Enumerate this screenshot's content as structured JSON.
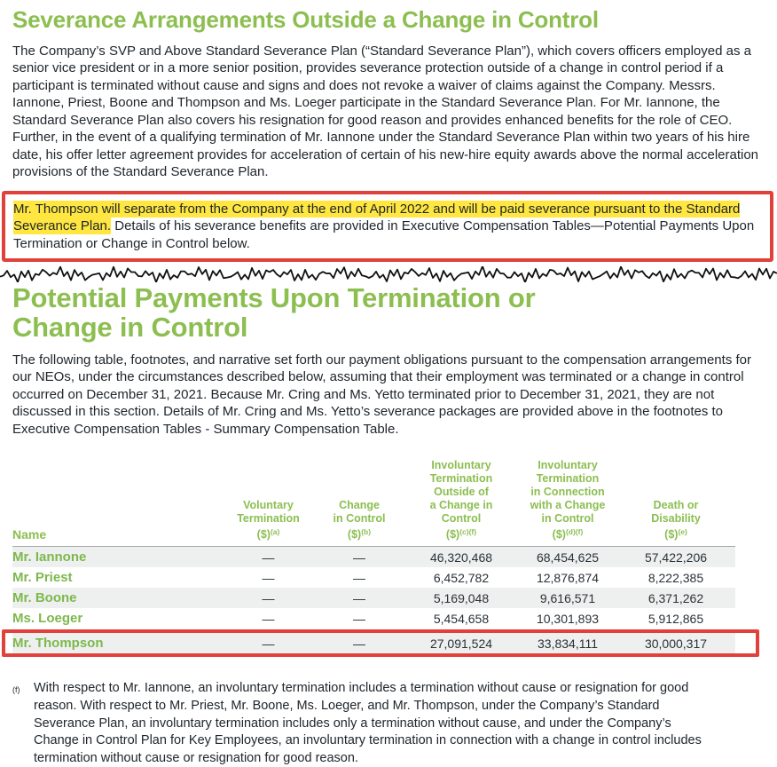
{
  "colors": {
    "accent_green": "#8cbe50",
    "name_green": "#7db84d",
    "highlight_yellow": "#ffe640",
    "annotation_red": "#e2403b",
    "row_shade": "#eef0ef"
  },
  "section1": {
    "title": "Severance Arrangements Outside a Change in Control",
    "body": "The Company’s SVP and Above Standard Severance Plan (“Standard Severance Plan”), which covers officers employed as a senior vice president or in a more senior position, provides severance protection outside of a change in control period if a participant is terminated without cause and signs and does not revoke a waiver of claims against the Company. Messrs. Iannone, Priest, Boone and Thompson and Ms. Loeger participate in the Standard Severance Plan. For Mr. Iannone, the Standard Severance Plan also covers his resignation for good reason and provides enhanced benefits for the role of CEO. Further, in the event of a qualifying termination of Mr. Iannone under the Standard Severance Plan within two years of his hire date, his offer letter agreement provides for acceleration of certain of his new-hire equity awards above the normal acceleration provisions of the Standard Severance Plan."
  },
  "callout": {
    "highlighted": "Mr. Thompson will separate from the Company at the end of April 2022 and will be paid severance pursuant to the Standard Severance Plan.",
    "rest": " Details of his severance benefits are provided in Executive Compensation Tables—Potential Payments Upon Termination or Change in Control below."
  },
  "section2": {
    "title": "Potential Payments Upon Termination or Change in Control",
    "body": "The following table, footnotes, and narrative set forth our payment obligations pursuant to the compensation arrangements for our NEOs, under the circumstances described below, assuming that their employment was terminated or a change in control occurred on December 31, 2021. Because Mr. Cring and Ms. Yetto terminated prior to December 31, 2021, they are not discussed in this section. Details of Mr. Cring and Ms. Yetto’s severance packages are provided above in the footnotes to Executive Compensation Tables  - Summary Compensation Table."
  },
  "table": {
    "headers": {
      "name": "Name",
      "col1": {
        "lines": "Voluntary\nTermination",
        "dollar": "($)",
        "sup": "(a)"
      },
      "col2": {
        "lines": "Change\nin Control",
        "dollar": "($)",
        "sup": "(b)"
      },
      "col3": {
        "lines": "Involuntary\nTermination\nOutside of\na Change in\nControl",
        "dollar": "($)",
        "sup": "(c)(f)"
      },
      "col4": {
        "lines": "Involuntary\nTermination\nin Connection\nwith a Change\nin Control",
        "dollar": "($)",
        "sup": "(d)(f)"
      },
      "col5": {
        "lines": "Death or\nDisability",
        "dollar": "($)",
        "sup": "(e)"
      }
    },
    "rows": [
      {
        "name": "Mr. Iannone",
        "v1": "—",
        "v2": "—",
        "v3": "46,320,468",
        "v4": "68,454,625",
        "v5": "57,422,206"
      },
      {
        "name": "Mr. Priest",
        "v1": "—",
        "v2": "—",
        "v3": "6,452,782",
        "v4": "12,876,874",
        "v5": "8,222,385"
      },
      {
        "name": "Mr. Boone",
        "v1": "—",
        "v2": "—",
        "v3": "5,169,048",
        "v4": "9,616,571",
        "v5": "6,371,262"
      },
      {
        "name": "Ms. Loeger",
        "v1": "—",
        "v2": "—",
        "v3": "5,454,658",
        "v4": "10,301,893",
        "v5": "5,912,865"
      },
      {
        "name": "Mr. Thompson",
        "v1": "—",
        "v2": "—",
        "v3": "27,091,524",
        "v4": "33,834,111",
        "v5": "30,000,317"
      }
    ]
  },
  "footnote": {
    "marker": "(f)",
    "text": "With respect to Mr. Iannone, an involuntary termination includes a termination without cause or resignation for good reason. With respect to Mr. Priest, Mr. Boone, Ms. Loeger, and Mr. Thompson, under the Company’s Standard Severance Plan, an involuntary termination includes only a termination without cause, and under the Company’s Change in Control Plan for Key Employees, an involuntary termination in connection with a change in control includes termination without cause or resignation for good reason."
  }
}
